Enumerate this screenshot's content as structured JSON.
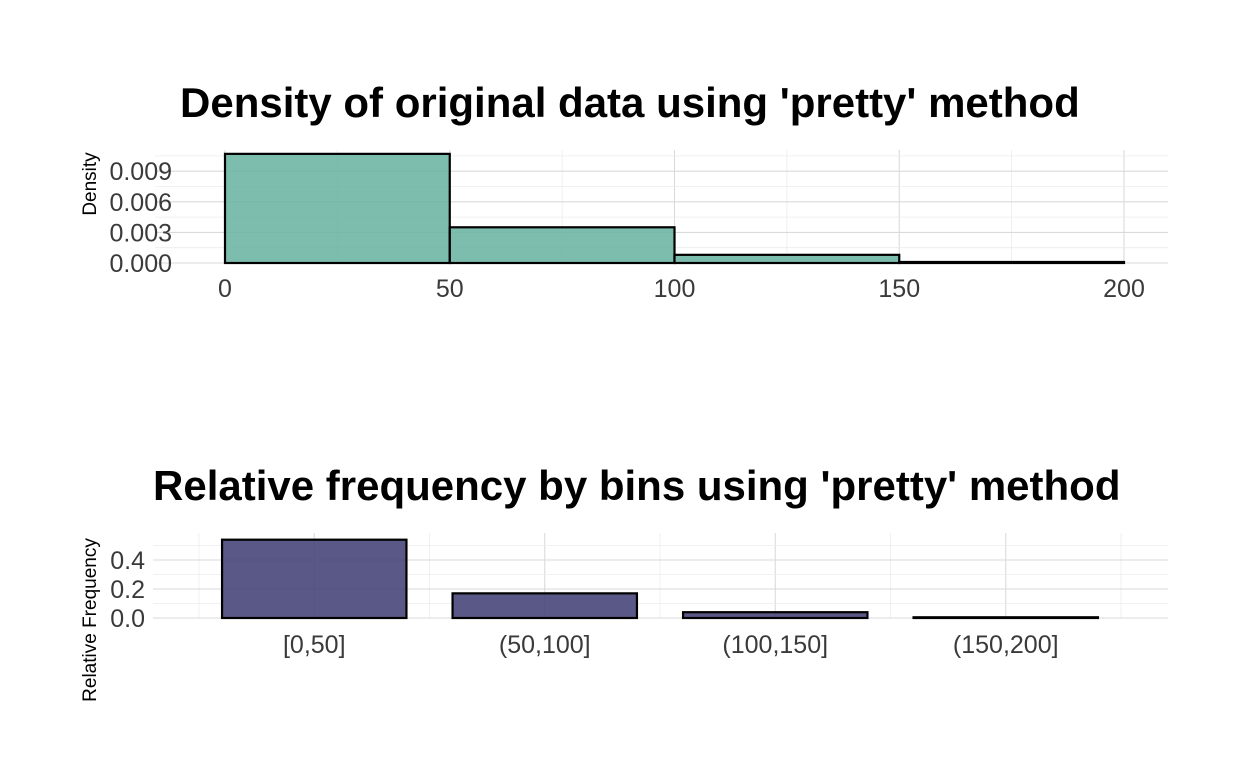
{
  "chart_data": [
    {
      "type": "bar",
      "subtype": "histogram",
      "title": "Density of original data using 'pretty' method",
      "xlabel": "",
      "ylabel": "Density",
      "bins": [
        [
          0,
          50
        ],
        [
          50,
          100
        ],
        [
          100,
          150
        ],
        [
          150,
          200
        ]
      ],
      "values": [
        0.0107,
        0.0035,
        0.0008,
        0.0001
      ],
      "xlim": [
        -10,
        210
      ],
      "ylim": [
        0,
        0.011
      ],
      "x_ticks": [
        0,
        50,
        100,
        150,
        200
      ],
      "x_tick_labels": [
        "0",
        "50",
        "100",
        "150",
        "200"
      ],
      "y_ticks": [
        0,
        0.003,
        0.006,
        0.009
      ],
      "y_tick_labels": [
        "0.000",
        "0.003",
        "0.006",
        "0.009"
      ],
      "fill_color": "#66b29f",
      "outline_color": "#000000",
      "grid": true,
      "legend": "none"
    },
    {
      "type": "bar",
      "title": "Relative frequency by bins using 'pretty' method",
      "xlabel": "",
      "ylabel": "Relative Frequency",
      "categories": [
        "[0,50]",
        "(50,100]",
        "(100,150]",
        "(150,200]"
      ],
      "values": [
        0.54,
        0.17,
        0.04,
        0.005
      ],
      "ylim": [
        0,
        0.56
      ],
      "y_ticks": [
        0,
        0.2,
        0.4
      ],
      "y_tick_labels": [
        "0.0",
        "0.2",
        "0.4"
      ],
      "fill_color": "#434175",
      "outline_color": "#000000",
      "grid": true,
      "legend": "none"
    }
  ]
}
